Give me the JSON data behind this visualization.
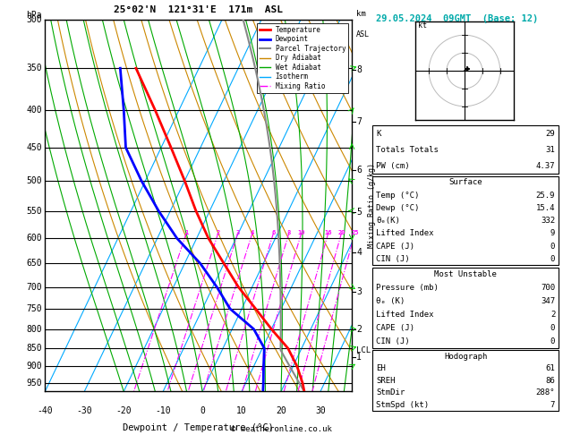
{
  "title_left": "25°02'N  121°31'E  171m  ASL",
  "title_right": "29.05.2024  09GMT  (Base: 12)",
  "xlabel": "Dewpoint / Temperature (°C)",
  "pressure_levels": [
    300,
    350,
    400,
    450,
    500,
    550,
    600,
    650,
    700,
    750,
    800,
    850,
    900,
    950
  ],
  "pressure_min": 300,
  "pressure_max": 975,
  "temp_min": -40,
  "temp_max": 38,
  "km_labels": [
    8,
    7,
    6,
    5,
    4,
    3,
    2,
    1
  ],
  "km_pressures": [
    352,
    415,
    483,
    553,
    628,
    710,
    800,
    875
  ],
  "mixing_ratio_labels": [
    "1",
    "2",
    "3",
    "4",
    "6",
    "8",
    "10",
    "16",
    "20",
    "25"
  ],
  "mixing_ratios": [
    1,
    2,
    3,
    4,
    6,
    8,
    10,
    16,
    20,
    25
  ],
  "mixing_ratio_label_pressure": 590,
  "lcl_pressure": 855,
  "temperature_profile": {
    "temps": [
      25.9,
      24.5,
      21.0,
      16.5,
      10.0,
      3.5,
      -3.5,
      -10.0,
      -17.0,
      -23.5,
      -30.0,
      -37.5,
      -46.0,
      -56.0
    ],
    "pressures": [
      975,
      950,
      900,
      850,
      800,
      750,
      700,
      650,
      600,
      550,
      500,
      450,
      400,
      350
    ]
  },
  "dewpoint_profile": {
    "temps": [
      15.4,
      14.5,
      12.5,
      10.5,
      5.5,
      -3.0,
      -9.0,
      -16.0,
      -25.0,
      -33.0,
      -41.0,
      -49.0,
      -54.0,
      -60.0
    ],
    "pressures": [
      975,
      950,
      900,
      850,
      800,
      750,
      700,
      650,
      600,
      550,
      500,
      450,
      400,
      350
    ]
  },
  "temp_color": "#ff0000",
  "dewpoint_color": "#0000ff",
  "parcel_color": "#888888",
  "dry_adiabat_color": "#cc8800",
  "wet_adiabat_color": "#00aa00",
  "isotherm_color": "#00aaff",
  "mixing_ratio_color": "#ff00ff",
  "info_data": {
    "K": "29",
    "Totals Totals": "31",
    "PW (cm)": "4.37",
    "surface_temp": "25.9",
    "surface_dewp": "15.4",
    "surface_theta": "332",
    "surface_li": "9",
    "surface_cape": "0",
    "surface_cin": "0",
    "mu_pressure": "700",
    "mu_theta": "347",
    "mu_li": "2",
    "mu_cape": "0",
    "mu_cin": "0",
    "hodo_eh": "61",
    "hodo_sreh": "86",
    "hodo_stmdir": "288°",
    "hodo_stmspd": "7"
  },
  "legend_items": [
    {
      "label": "Temperature",
      "color": "#ff0000",
      "lw": 2,
      "ls": "-"
    },
    {
      "label": "Dewpoint",
      "color": "#0000ff",
      "lw": 2,
      "ls": "-"
    },
    {
      "label": "Parcel Trajectory",
      "color": "#888888",
      "lw": 1.5,
      "ls": "-"
    },
    {
      "label": "Dry Adiabat",
      "color": "#cc8800",
      "lw": 1,
      "ls": "-"
    },
    {
      "label": "Wet Adiabat",
      "color": "#00aa00",
      "lw": 1,
      "ls": "-"
    },
    {
      "label": "Isotherm",
      "color": "#00aaff",
      "lw": 1,
      "ls": "-"
    },
    {
      "label": "Mixing Ratio",
      "color": "#ff00ff",
      "lw": 1,
      "ls": "-."
    }
  ]
}
